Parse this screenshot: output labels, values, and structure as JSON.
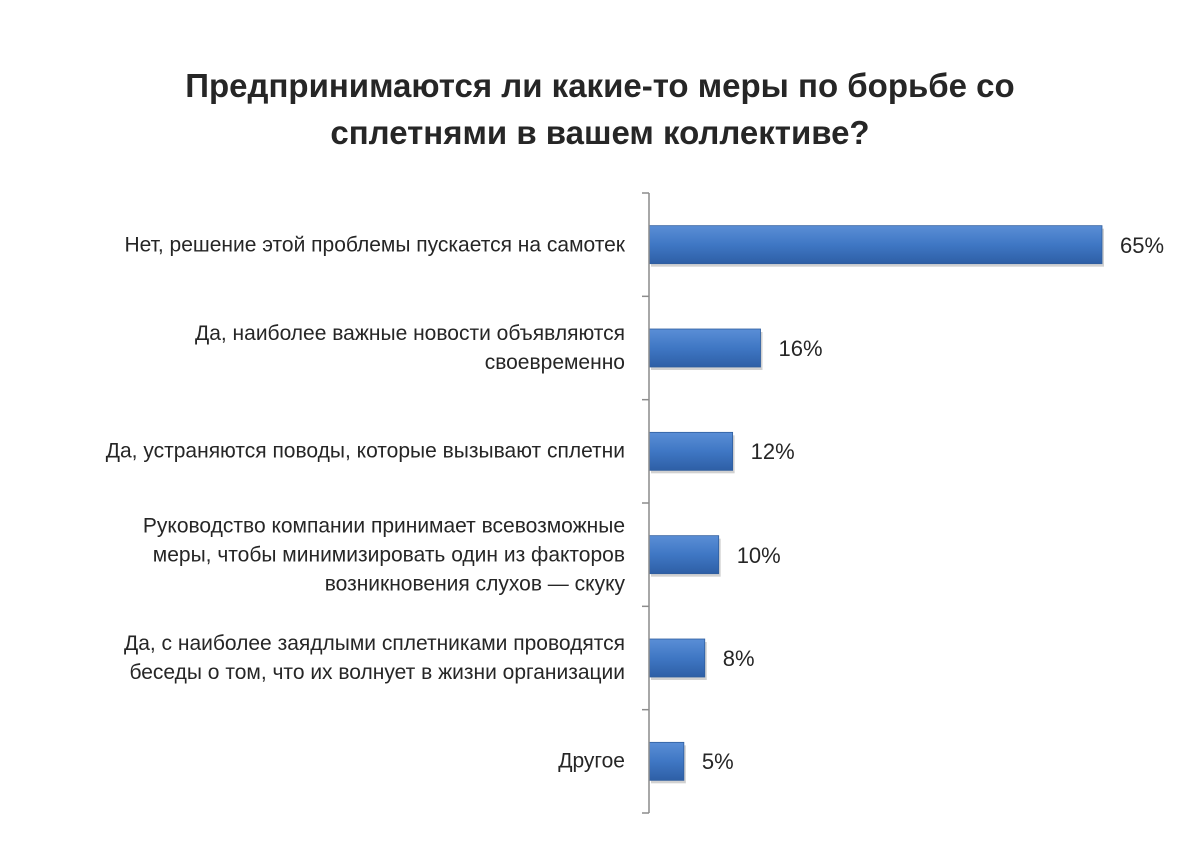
{
  "chart_data": {
    "type": "bar",
    "orientation": "horizontal",
    "title": "Предпринимаются ли какие-то меры по борьбе со\nсплетнями в вашем коллективе?",
    "categories": [
      "Нет, решение этой проблемы пускается на самотек",
      "Да, наиболее важные новости объявляются\nсвоевременно",
      "Да, устраняются поводы, которые вызывают сплетни",
      "Руководство компании принимает всевозможные\nмеры, чтобы минимизировать один из факторов\nвозникновения слухов — скуку",
      "Да, с наиболее заядлыми сплетниками проводятся\nбеседы о том, что их волнует в жизни организации",
      "Другое"
    ],
    "values": [
      65,
      16,
      12,
      10,
      8,
      5
    ],
    "value_labels": [
      "65%",
      "16%",
      "12%",
      "10%",
      "8%",
      "5%"
    ],
    "bar_color": "#3F77C4",
    "grid": false,
    "legend": "none"
  }
}
